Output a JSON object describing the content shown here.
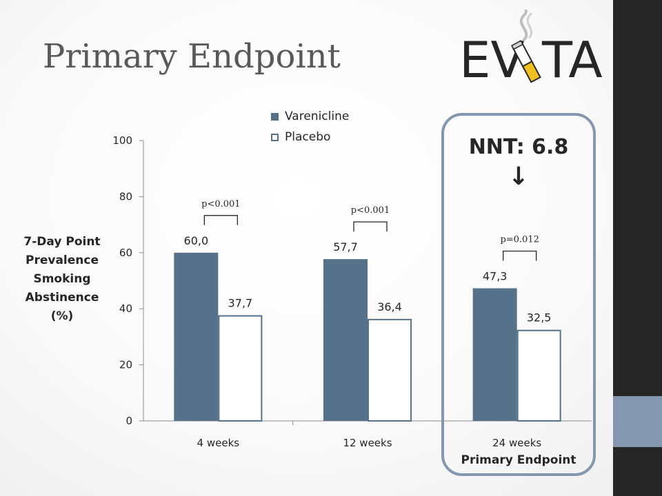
{
  "slide": {
    "title": "Primary Endpoint",
    "logo_text_left": "EV",
    "logo_text_right": "TA",
    "nnt_text": "NNT: 6.8",
    "nnt_arrow": "↓",
    "primary_endpoint_label": "Primary Endpoint"
  },
  "colors": {
    "varenicline": "#56718a",
    "placebo": "#ffffff",
    "accent": "#8496b0",
    "dark_side": "#262626"
  },
  "chart_data": {
    "type": "bar",
    "title": "",
    "categories": [
      "4 weeks",
      "12 weeks",
      "24 weeks"
    ],
    "series": [
      {
        "name": "Varenicline",
        "values": [
          60.0,
          57.7,
          47.3
        ],
        "labels": [
          "60,0",
          "57,7",
          "47,3"
        ]
      },
      {
        "name": "Placebo",
        "values": [
          37.7,
          36.4,
          32.5
        ],
        "labels": [
          "37,7",
          "36,4",
          "32,5"
        ]
      }
    ],
    "ylabel_lines": [
      "7-Day Point",
      "Prevalence",
      "Smoking",
      "Abstinence",
      "(%)"
    ],
    "ylim": [
      0,
      100
    ],
    "yticks": [
      0,
      20,
      40,
      60,
      80,
      100
    ],
    "p_values": [
      "p<0.001",
      "p<0.001",
      "p=0.012"
    ],
    "grid": false,
    "legend_position": "top-center"
  }
}
